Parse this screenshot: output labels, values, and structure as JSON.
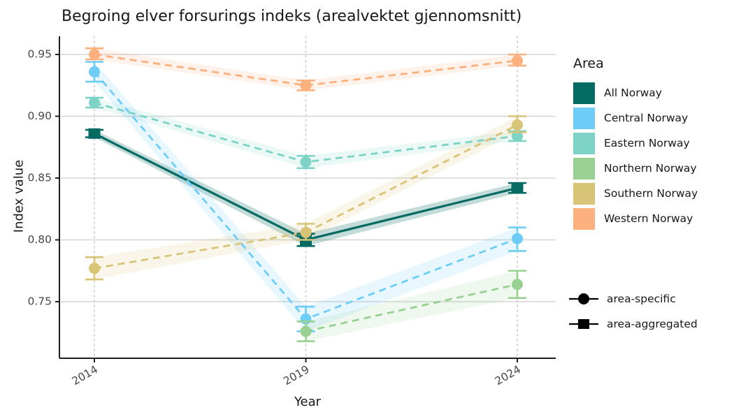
{
  "chart_data": {
    "type": "line",
    "title": "Begroing elver forsurings indeks (arealvektet gjennomsnitt)",
    "xlabel": "Year",
    "ylabel": "Index value",
    "categories": [
      "2014",
      "2019",
      "2024"
    ],
    "y_ticks": [
      0.75,
      0.8,
      0.85,
      0.9,
      0.95
    ],
    "y_tick_labels": [
      "0.75",
      "0.80",
      "0.85",
      "0.90",
      "0.95"
    ],
    "ylim": [
      0.704,
      0.965
    ],
    "grid": {
      "horizontal": "solid",
      "vertical": "dotted"
    },
    "legend": {
      "title": "Area",
      "position": "right"
    },
    "marker_legend": [
      {
        "label": "area-specific",
        "marker": "circle"
      },
      {
        "label": "area-aggregated",
        "marker": "square"
      }
    ],
    "colors": {
      "grid_major": "#d5d5d5",
      "grid_dotted": "#c9c9c9",
      "axis_line": "#1f1f1f",
      "tick_label": "#474747",
      "legend_marker": "#000000"
    },
    "series": [
      {
        "name": "All Norway",
        "kind": "area-aggregated",
        "marker": "square",
        "line": "solid",
        "color": "#046a62",
        "ribbon_opacity": 0.24,
        "values": [
          0.886,
          0.8,
          0.842
        ],
        "ci_low": [
          0.883,
          0.795,
          0.838
        ],
        "ci_high": [
          0.889,
          0.805,
          0.846
        ]
      },
      {
        "name": "Central Norway",
        "kind": "area-specific",
        "marker": "circle",
        "line": "dashed",
        "color": "#6dcdf6",
        "ribbon_opacity": 0.16,
        "values": [
          0.936,
          0.736,
          0.801
        ],
        "ci_low": [
          0.928,
          0.726,
          0.791
        ],
        "ci_high": [
          0.944,
          0.746,
          0.81
        ]
      },
      {
        "name": "Eastern Norway",
        "kind": "area-specific",
        "marker": "circle",
        "line": "dashed",
        "color": "#7dd3c6",
        "ribbon_opacity": 0.16,
        "values": [
          0.911,
          0.863,
          0.884
        ],
        "ci_low": [
          0.907,
          0.858,
          0.88
        ],
        "ci_high": [
          0.915,
          0.868,
          0.888
        ]
      },
      {
        "name": "Northern Norway",
        "kind": "area-specific",
        "marker": "circle",
        "line": "dashed",
        "color": "#99d193",
        "ribbon_opacity": 0.16,
        "values": [
          null,
          0.726,
          0.764
        ],
        "ci_low": [
          null,
          0.718,
          0.753
        ],
        "ci_high": [
          null,
          0.734,
          0.775
        ]
      },
      {
        "name": "Southern Norway",
        "kind": "area-specific",
        "marker": "circle",
        "line": "dashed",
        "color": "#d8c477",
        "ribbon_opacity": 0.16,
        "values": [
          0.777,
          0.806,
          0.893
        ],
        "ci_low": [
          0.768,
          0.8,
          0.887
        ],
        "ci_high": [
          0.786,
          0.813,
          0.9
        ]
      },
      {
        "name": "Western Norway",
        "kind": "area-specific",
        "marker": "circle",
        "line": "dashed",
        "color": "#fcb07e",
        "ribbon_opacity": 0.16,
        "values": [
          0.95,
          0.925,
          0.945
        ],
        "ci_low": [
          0.946,
          0.921,
          0.941
        ],
        "ci_high": [
          0.955,
          0.929,
          0.95
        ]
      }
    ]
  }
}
